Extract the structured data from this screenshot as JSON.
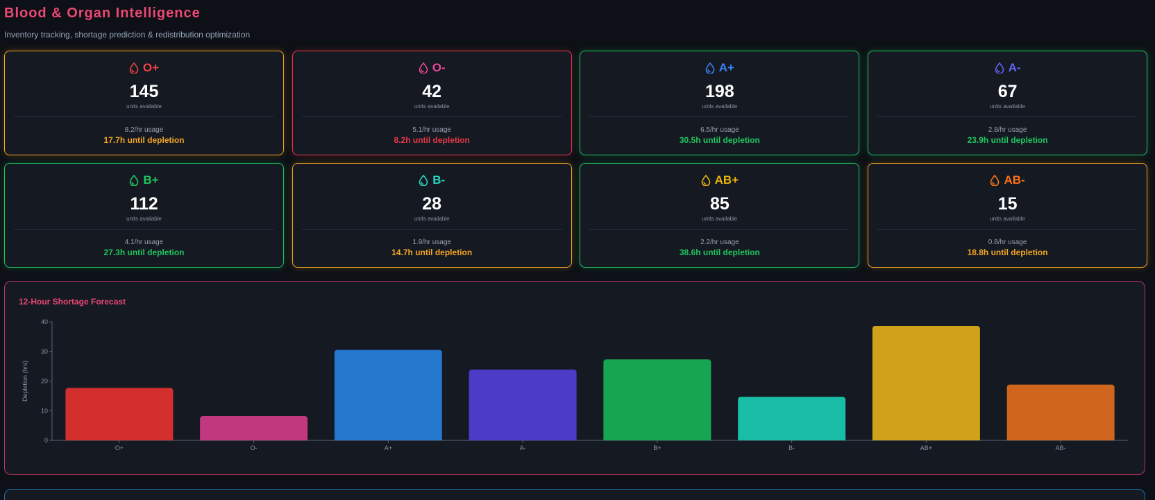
{
  "header": {
    "title": "Blood & Organ Intelligence",
    "subtitle": "Inventory tracking, shortage prediction & redistribution optimization"
  },
  "colors": {
    "warning": "#f5a524",
    "critical": "#e53945",
    "healthy": "#22c55e"
  },
  "blood_types": [
    {
      "type": "O+",
      "units": "145",
      "unit_label": "units available",
      "usage": "8.2/hr usage",
      "depletion": "17.7h until depletion",
      "status": "warning",
      "type_color": "#ef4444"
    },
    {
      "type": "O-",
      "units": "42",
      "unit_label": "units available",
      "usage": "5.1/hr usage",
      "depletion": "8.2h until depletion",
      "status": "critical",
      "type_color": "#ec4899"
    },
    {
      "type": "A+",
      "units": "198",
      "unit_label": "units available",
      "usage": "6.5/hr usage",
      "depletion": "30.5h until depletion",
      "status": "healthy",
      "type_color": "#3b82f6"
    },
    {
      "type": "A-",
      "units": "67",
      "unit_label": "units available",
      "usage": "2.8/hr usage",
      "depletion": "23.9h until depletion",
      "status": "healthy",
      "type_color": "#6366f1"
    },
    {
      "type": "B+",
      "units": "112",
      "unit_label": "units available",
      "usage": "4.1/hr usage",
      "depletion": "27.3h until depletion",
      "status": "healthy",
      "type_color": "#22c55e"
    },
    {
      "type": "B-",
      "units": "28",
      "unit_label": "units available",
      "usage": "1.9/hr usage",
      "depletion": "14.7h until depletion",
      "status": "warning",
      "type_color": "#2dd4bf"
    },
    {
      "type": "AB+",
      "units": "85",
      "unit_label": "units available",
      "usage": "2.2/hr usage",
      "depletion": "38.6h until depletion",
      "status": "healthy",
      "type_color": "#eab308"
    },
    {
      "type": "AB-",
      "units": "15",
      "unit_label": "units available",
      "usage": "0.8/hr usage",
      "depletion": "18.8h until depletion",
      "status": "warning",
      "type_color": "#f97316"
    }
  ],
  "forecast": {
    "title": "12-Hour Shortage Forecast"
  },
  "chart_data": {
    "type": "bar",
    "title": "12-Hour Shortage Forecast",
    "xlabel": "",
    "ylabel": "Depletion (hrs)",
    "categories": [
      "O+",
      "O-",
      "A+",
      "A-",
      "B+",
      "B-",
      "AB+",
      "AB-"
    ],
    "values": [
      17.7,
      8.2,
      30.5,
      23.9,
      27.3,
      14.7,
      38.6,
      18.8
    ],
    "colors": [
      "#d32f2f",
      "#c2387f",
      "#2477cc",
      "#4b3bc6",
      "#16a652",
      "#19bda6",
      "#d0a11a",
      "#d0651d"
    ],
    "ylim": [
      0,
      40
    ],
    "yticks": [
      0,
      10,
      20,
      30,
      40
    ],
    "grid": false,
    "legend": "none"
  }
}
